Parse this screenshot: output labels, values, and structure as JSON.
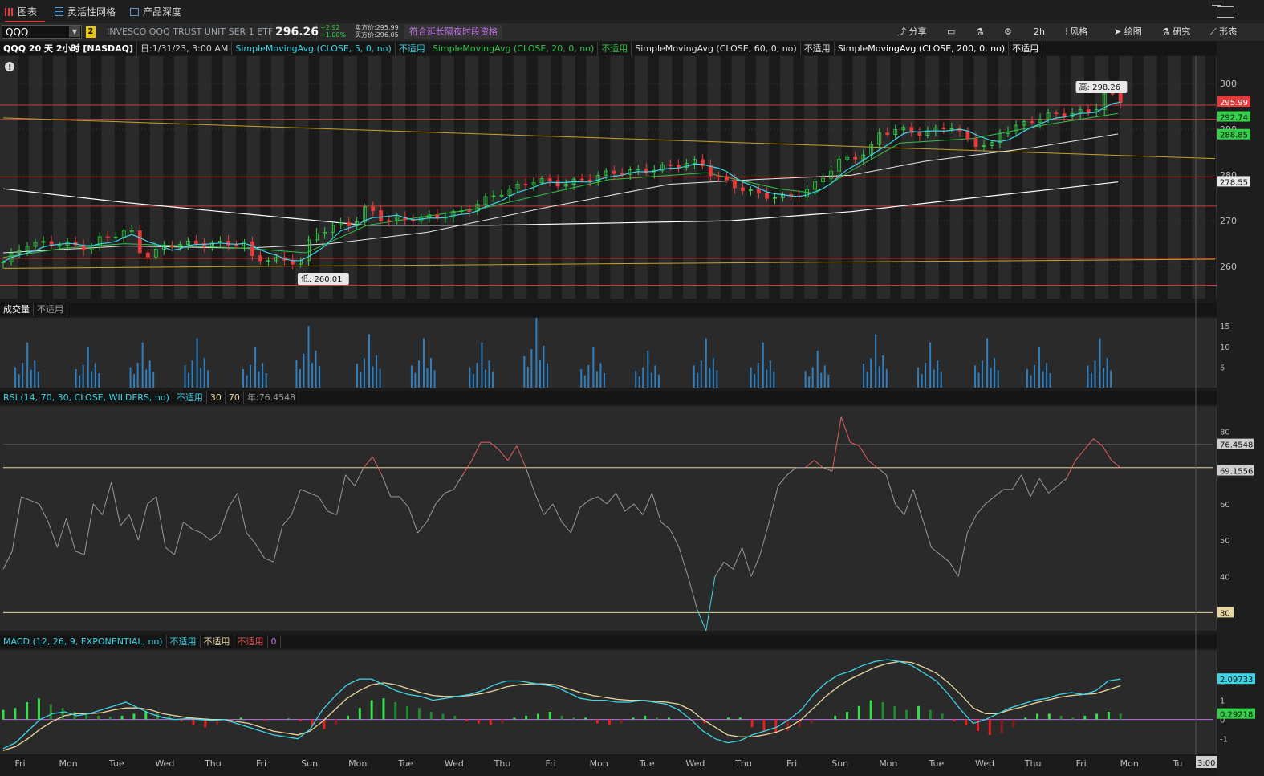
{
  "tabs": [
    {
      "label": "图表",
      "active": true
    },
    {
      "label": "灵活性网格",
      "active": false
    },
    {
      "label": "产品深度",
      "active": false
    }
  ],
  "toolbar": {
    "symbol": "QQQ",
    "link_badge": "2",
    "description": "INVESCO QQQ TRUST UNIT SER 1 ETF",
    "last_price": "296.26",
    "net_change": "+2.92",
    "pct_change": "+1.00%",
    "bid": "卖方价:295.99",
    "ask": "买方价:296.05",
    "overnight": "符合延长隔夜时段资格",
    "share": "分享",
    "timeframe": "2h",
    "style": "风格",
    "drawings": "绘图",
    "studies": "研究",
    "patterns": "形态"
  },
  "chart_info": {
    "symbol": "QQQ 20 天 2小时 [NASDAQ]",
    "date": "日:1/31/23, 3:00 AM",
    "na": "不适用",
    "studies": [
      {
        "label": "SimpleMovingAvg (CLOSE, 5, 0, no)",
        "color": "#3fd4e6"
      },
      {
        "label": "SimpleMovingAvg (CLOSE, 20, 0, no)",
        "color": "#33c24a"
      },
      {
        "label": "SimpleMovingAvg (CLOSE, 60, 0, no)",
        "color": "#e0e0e0"
      },
      {
        "label": "SimpleMovingAvg (CLOSE, 200, 0, no)",
        "color": "#ffffff"
      }
    ]
  },
  "volume_header": {
    "title": "成交量",
    "na": "不适用"
  },
  "rsi_header": {
    "title": "RSI (14, 70, 30, CLOSE, WILDERS, no)",
    "na": "不适用",
    "lower": "30",
    "upper": "70",
    "value": "年:76.4548"
  },
  "macd_header": {
    "title": "MACD (12, 26, 9, EXPONENTIAL, no)",
    "na1": "不适用",
    "na2": "不适用",
    "na3": "不适用",
    "zero": "0"
  },
  "colors": {
    "up": "#35d04a",
    "down": "#e83a3a",
    "sma5": "#3fd4e6",
    "sma20": "#33c24a",
    "sma60": "#e8e8e8",
    "sma200": "#ffffff",
    "level": "#d23a3a",
    "trend": "#c9a227",
    "rsi": "#9a9a9a",
    "macd": "#3fd4e6",
    "signal": "#e8d6a0"
  },
  "chart_data": [
    {
      "type": "candlestick",
      "name": "price",
      "ylim": [
        253,
        306
      ],
      "yticks": [
        260,
        270,
        280,
        290,
        300
      ],
      "x_day_labels": [
        "Fri",
        "Mon",
        "Tue",
        "Wed",
        "Thu",
        "Fri",
        "Sun",
        "Mon",
        "Tue",
        "Wed",
        "Thu",
        "Fri",
        "Mon",
        "Tue",
        "Wed",
        "Thu",
        "Fri",
        "Sun",
        "Mon",
        "Tue",
        "Wed",
        "Thu",
        "Fri",
        "Mon",
        "Tu"
      ],
      "high_label": "高: 298.26",
      "low_label": "低: 260.01",
      "price_tags": [
        {
          "value": 295.99,
          "label": "295.99",
          "color": "#e83a3a"
        },
        {
          "value": 292.74,
          "label": "292.74",
          "color": "#35d04a"
        },
        {
          "value": 288.85,
          "label": "288.85",
          "color": "#35d04a"
        },
        {
          "value": 278.55,
          "label": "278.55",
          "color": "#e8e8e8"
        }
      ],
      "horizontal_levels": [
        295.3,
        292.2,
        279.6,
        273.2,
        261.8,
        255.9
      ],
      "trendlines": [
        {
          "x1": 0,
          "y1": 292.5,
          "x2": 1.0,
          "y2": 283.6
        },
        {
          "x1": 0,
          "y1": 259.6,
          "x2": 1.0,
          "y2": 261.6
        }
      ],
      "close_path": [
        [
          0,
          261
        ],
        [
          0.02,
          265
        ],
        [
          0.05,
          265
        ],
        [
          0.07,
          264
        ],
        [
          0.08,
          266
        ],
        [
          0.105,
          268
        ],
        [
          0.115,
          262
        ],
        [
          0.14,
          265
        ],
        [
          0.17,
          265
        ],
        [
          0.2,
          265
        ],
        [
          0.205,
          262
        ],
        [
          0.22,
          261.5
        ],
        [
          0.245,
          261
        ],
        [
          0.255,
          267
        ],
        [
          0.275,
          269
        ],
        [
          0.29,
          269.5
        ],
        [
          0.3,
          273
        ],
        [
          0.315,
          270
        ],
        [
          0.34,
          270.5
        ],
        [
          0.36,
          271
        ],
        [
          0.38,
          272
        ],
        [
          0.4,
          275
        ],
        [
          0.42,
          277
        ],
        [
          0.44,
          279
        ],
        [
          0.46,
          278
        ],
        [
          0.48,
          279
        ],
        [
          0.5,
          280.5
        ],
        [
          0.53,
          281
        ],
        [
          0.55,
          282
        ],
        [
          0.575,
          283
        ],
        [
          0.58,
          281
        ],
        [
          0.6,
          278
        ],
        [
          0.62,
          276
        ],
        [
          0.64,
          275
        ],
        [
          0.66,
          276
        ],
        [
          0.67,
          278
        ],
        [
          0.69,
          283
        ],
        [
          0.715,
          285
        ],
        [
          0.72,
          289
        ],
        [
          0.74,
          290
        ],
        [
          0.76,
          289
        ],
        [
          0.78,
          291
        ],
        [
          0.79,
          289
        ],
        [
          0.8,
          287
        ],
        [
          0.815,
          286
        ],
        [
          0.82,
          289
        ],
        [
          0.84,
          291
        ],
        [
          0.86,
          293
        ],
        [
          0.88,
          293.5
        ],
        [
          0.9,
          294
        ],
        [
          0.91,
          298.2
        ],
        [
          0.922,
          296.26
        ]
      ],
      "sma_paths": {
        "sma20": [
          [
            0,
            262
          ],
          [
            0.05,
            264
          ],
          [
            0.1,
            265
          ],
          [
            0.2,
            264
          ],
          [
            0.25,
            263
          ],
          [
            0.3,
            269
          ],
          [
            0.4,
            273
          ],
          [
            0.5,
            279
          ],
          [
            0.58,
            280.5
          ],
          [
            0.64,
            277
          ],
          [
            0.67,
            276
          ],
          [
            0.7,
            281
          ],
          [
            0.74,
            287
          ],
          [
            0.8,
            288
          ],
          [
            0.86,
            291
          ],
          [
            0.92,
            293.5
          ]
        ],
        "sma60": [
          [
            0,
            263
          ],
          [
            0.1,
            264.5
          ],
          [
            0.2,
            264
          ],
          [
            0.27,
            265
          ],
          [
            0.35,
            267.5
          ],
          [
            0.45,
            273
          ],
          [
            0.55,
            278
          ],
          [
            0.62,
            279
          ],
          [
            0.7,
            280
          ],
          [
            0.76,
            283
          ],
          [
            0.85,
            286
          ],
          [
            0.92,
            289
          ]
        ],
        "sma200": [
          [
            0,
            277
          ],
          [
            0.1,
            274
          ],
          [
            0.2,
            271.5
          ],
          [
            0.3,
            269
          ],
          [
            0.4,
            269
          ],
          [
            0.5,
            269.5
          ],
          [
            0.6,
            270
          ],
          [
            0.7,
            272
          ],
          [
            0.8,
            275
          ],
          [
            0.87,
            277
          ],
          [
            0.92,
            278.5
          ]
        ]
      },
      "candles": {
        "count": 140,
        "start": 260.6,
        "end": 296.26
      }
    },
    {
      "type": "bar",
      "name": "volume",
      "ylim": [
        0,
        17
      ],
      "yticks": [
        5,
        10,
        15
      ],
      "clusters": [
        {
          "x": 0.02,
          "peak": 11
        },
        {
          "x": 0.07,
          "peak": 10
        },
        {
          "x": 0.115,
          "peak": 11
        },
        {
          "x": 0.16,
          "peak": 12
        },
        {
          "x": 0.208,
          "peak": 10
        },
        {
          "x": 0.252,
          "peak": 15
        },
        {
          "x": 0.302,
          "peak": 13
        },
        {
          "x": 0.347,
          "peak": 12
        },
        {
          "x": 0.395,
          "peak": 11
        },
        {
          "x": 0.44,
          "peak": 17
        },
        {
          "x": 0.487,
          "peak": 10
        },
        {
          "x": 0.532,
          "peak": 9
        },
        {
          "x": 0.58,
          "peak": 12
        },
        {
          "x": 0.627,
          "peak": 11
        },
        {
          "x": 0.672,
          "peak": 9
        },
        {
          "x": 0.72,
          "peak": 13
        },
        {
          "x": 0.765,
          "peak": 11
        },
        {
          "x": 0.812,
          "peak": 12
        },
        {
          "x": 0.855,
          "peak": 10
        },
        {
          "x": 0.905,
          "peak": 12
        }
      ]
    },
    {
      "type": "line",
      "name": "RSI",
      "ylim": [
        25,
        87
      ],
      "yticks": [
        30,
        40,
        50,
        60,
        70,
        80
      ],
      "tags": [
        {
          "value": 76.4548,
          "label": "76.4548"
        },
        {
          "value": 69.1556,
          "label": "69.1556"
        },
        {
          "value": 30,
          "label": "30"
        }
      ],
      "overbought": 70,
      "oversold": 30,
      "values": [
        42,
        47,
        62,
        61,
        60,
        55,
        48,
        56,
        47,
        46,
        60,
        57,
        66,
        54,
        57,
        50,
        60,
        62,
        48,
        46,
        55,
        53,
        52,
        50,
        52,
        59,
        63,
        52,
        49,
        45,
        44,
        54,
        57,
        64,
        63,
        62,
        58,
        57,
        68,
        65,
        70,
        73,
        68,
        62,
        62,
        59,
        52,
        55,
        60,
        63,
        64,
        68,
        72,
        77,
        77,
        75,
        72,
        76,
        70,
        63,
        57,
        60,
        55,
        52,
        59,
        61,
        62,
        60,
        63,
        58,
        60,
        57,
        63,
        55,
        53,
        48,
        40,
        31,
        25,
        40,
        44,
        42,
        48,
        40,
        46,
        55,
        65,
        68,
        70,
        70,
        72,
        70,
        69,
        84,
        77,
        76,
        72,
        70,
        68,
        60,
        57,
        64,
        56,
        48,
        46,
        44,
        40,
        52,
        57,
        60,
        62,
        64,
        64,
        68,
        62,
        67,
        63,
        65,
        67,
        72,
        75,
        78,
        76,
        72,
        70
      ]
    },
    {
      "type": "line",
      "name": "MACD",
      "ylim": [
        -1.8,
        3.6
      ],
      "yticks": [
        -1,
        0,
        1,
        2
      ],
      "tags": [
        {
          "value": 2.09733,
          "label": "2.09733"
        },
        {
          "value": 0.29218,
          "label": "0.29218"
        }
      ],
      "macd": [
        -1.5,
        -1.2,
        -0.6,
        0.0,
        0.3,
        0.4,
        0.2,
        0.3,
        0.5,
        0.7,
        0.9,
        0.6,
        0.3,
        0.1,
        0.0,
        0.05,
        0.0,
        -0.05,
        0.0,
        -0.2,
        -0.4,
        -0.6,
        -0.8,
        -0.9,
        -1.0,
        -0.5,
        0.5,
        1.2,
        1.8,
        2.1,
        2.1,
        1.8,
        1.5,
        1.3,
        1.2,
        1.0,
        1.1,
        1.2,
        1.3,
        1.5,
        1.8,
        2.0,
        2.0,
        1.9,
        1.8,
        1.7,
        1.4,
        1.1,
        1.0,
        1.0,
        0.9,
        0.9,
        1.0,
        0.9,
        0.8,
        0.5,
        0.0,
        -0.6,
        -1.0,
        -1.2,
        -1.1,
        -0.8,
        -0.6,
        -0.4,
        0.0,
        0.5,
        1.3,
        1.9,
        2.3,
        2.5,
        2.8,
        3.0,
        3.1,
        3.0,
        2.8,
        2.4,
        2.0,
        1.3,
        0.5,
        -0.2,
        0.0,
        0.3,
        0.6,
        0.8,
        1.0,
        1.1,
        1.3,
        1.4,
        1.3,
        1.5,
        2.0,
        2.1
      ],
      "signal": [
        -1.6,
        -1.4,
        -1.0,
        -0.5,
        -0.1,
        0.2,
        0.3,
        0.3,
        0.35,
        0.5,
        0.6,
        0.6,
        0.5,
        0.3,
        0.2,
        0.1,
        0.05,
        0.0,
        0.0,
        -0.1,
        -0.2,
        -0.4,
        -0.6,
        -0.7,
        -0.8,
        -0.6,
        -0.1,
        0.5,
        1.1,
        1.5,
        1.8,
        1.9,
        1.8,
        1.6,
        1.4,
        1.25,
        1.2,
        1.2,
        1.25,
        1.35,
        1.5,
        1.7,
        1.8,
        1.85,
        1.85,
        1.8,
        1.6,
        1.4,
        1.25,
        1.15,
        1.05,
        1.0,
        1.0,
        0.95,
        0.9,
        0.8,
        0.5,
        0.0,
        -0.4,
        -0.8,
        -0.9,
        -0.9,
        -0.8,
        -0.65,
        -0.4,
        0.0,
        0.6,
        1.2,
        1.7,
        2.1,
        2.4,
        2.7,
        2.9,
        3.0,
        2.95,
        2.7,
        2.4,
        1.9,
        1.3,
        0.6,
        0.3,
        0.3,
        0.5,
        0.65,
        0.85,
        1.0,
        1.15,
        1.25,
        1.3,
        1.35,
        1.55,
        1.75
      ],
      "histogram": [
        0.5,
        0.6,
        0.9,
        1.1,
        0.8,
        0.6,
        0.4,
        0.3,
        0.2,
        0.15,
        0.2,
        0.3,
        0.4,
        0.3,
        0.2,
        -0.1,
        -0.3,
        -0.4,
        -0.3,
        -0.2,
        0.1,
        0.0,
        -0.05,
        0.0,
        0.05,
        -0.1,
        -0.3,
        -0.5,
        -0.3,
        0.2,
        0.6,
        1.0,
        1.1,
        0.9,
        0.7,
        0.6,
        0.4,
        0.3,
        0.2,
        -0.1,
        -0.2,
        -0.3,
        -0.2,
        0.1,
        0.2,
        0.3,
        0.4,
        0.2,
        0.1,
        0.1,
        -0.2,
        -0.3,
        -0.2,
        0.1,
        0.2,
        0.1,
        0.1,
        0.0,
        -0.1,
        -0.2,
        0.0,
        0.1,
        0.1,
        -0.4,
        -0.6,
        -0.7,
        -0.6,
        -0.4,
        -0.2,
        0.0,
        0.2,
        0.4,
        0.7,
        1.0,
        0.9,
        0.7,
        0.5,
        0.7,
        0.5,
        0.3,
        -0.1,
        -0.3,
        -0.6,
        -0.8,
        -0.7,
        -0.4,
        0.1,
        0.3,
        0.3,
        0.2,
        0.1,
        0.2,
        0.3,
        0.4,
        0.3
      ]
    }
  ],
  "time_tag": "3:00"
}
